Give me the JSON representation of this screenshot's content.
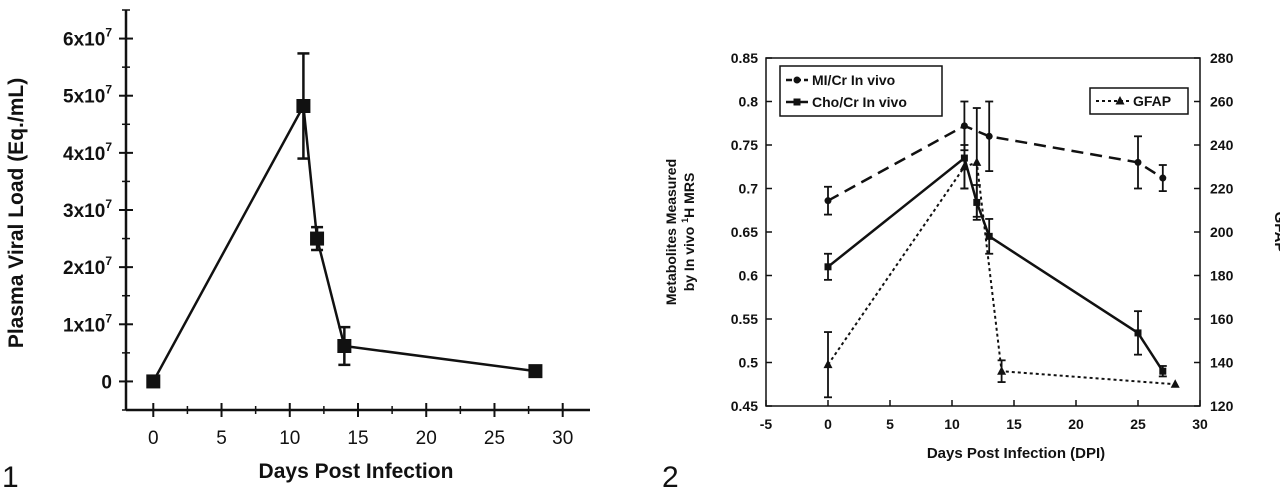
{
  "figures": [
    {
      "number": "1"
    },
    {
      "number": "2"
    }
  ],
  "chart_data": [
    {
      "type": "line",
      "title": "",
      "xlabel": "Days Post Infection",
      "ylabel": "Plasma Viral Load (Eq./mL)",
      "xlim": [
        -2,
        32
      ],
      "ylim": [
        -0.5,
        6.5
      ],
      "y_multiplier": 10000000,
      "x_ticks": [
        0,
        5,
        10,
        15,
        20,
        25,
        30
      ],
      "y_ticks": [
        {
          "value": 0,
          "mantissa": "0",
          "exp": ""
        },
        {
          "value": 1,
          "mantissa": "1x10",
          "exp": "7"
        },
        {
          "value": 2,
          "mantissa": "2x10",
          "exp": "7"
        },
        {
          "value": 3,
          "mantissa": "3x10",
          "exp": "7"
        },
        {
          "value": 4,
          "mantissa": "4x10",
          "exp": "7"
        },
        {
          "value": 5,
          "mantissa": "5x10",
          "exp": "7"
        },
        {
          "value": 6,
          "mantissa": "6x10",
          "exp": "7"
        }
      ],
      "series": [
        {
          "marker": "square",
          "x": [
            0,
            11,
            12,
            14,
            28
          ],
          "y": [
            0.0,
            4.82,
            2.5,
            0.62,
            0.18
          ],
          "err": [
            0,
            0.92,
            0.2,
            0.33,
            0
          ]
        }
      ]
    },
    {
      "type": "line",
      "title": "",
      "xlabel": "Days Post Infection (DPI)",
      "ylabel": [
        "Metabolites Measured",
        "by In vivo ",
        "1",
        "H MRS"
      ],
      "y2label": "GFAP",
      "xlim": [
        -5,
        30
      ],
      "ylim": [
        0.45,
        0.85
      ],
      "y2lim": [
        120,
        280
      ],
      "x_ticks": [
        -5,
        0,
        5,
        10,
        15,
        20,
        25,
        30
      ],
      "y_ticks": [
        "0.45",
        "0.5",
        "0.55",
        "0.6",
        "0.65",
        "0.7",
        "0.75",
        "0.8",
        "0.85"
      ],
      "y2_ticks": [
        "120",
        "140",
        "160",
        "180",
        "200",
        "220",
        "240",
        "260",
        "280"
      ],
      "legend": {
        "placement": "top-left and top-right",
        "entries": [
          "MI/Cr In vivo",
          "Cho/Cr In vivo",
          "GFAP"
        ]
      },
      "series": [
        {
          "name": "MI/Cr In vivo",
          "axis": "left",
          "style": "dashed",
          "marker": "circle",
          "x": [
            0,
            11,
            13,
            25,
            27
          ],
          "y": [
            0.686,
            0.772,
            0.76,
            0.73,
            0.712
          ],
          "err": [
            0.016,
            0.028,
            0.04,
            0.03,
            0.015
          ]
        },
        {
          "name": "Cho/Cr In vivo",
          "axis": "left",
          "style": "solid",
          "marker": "square",
          "x": [
            0,
            11,
            12,
            13,
            25,
            27
          ],
          "y": [
            0.61,
            0.735,
            0.684,
            0.645,
            0.534,
            0.49
          ],
          "err": [
            0.015,
            0.035,
            0.02,
            0.02,
            0.025,
            0.006
          ]
        },
        {
          "name": "GFAP",
          "axis": "right",
          "style": "dotted",
          "marker": "triangle",
          "x": [
            0,
            11,
            12,
            14,
            28
          ],
          "y": [
            139,
            230,
            232,
            136,
            130
          ],
          "err": [
            15,
            10,
            25,
            5,
            0
          ]
        }
      ]
    }
  ]
}
